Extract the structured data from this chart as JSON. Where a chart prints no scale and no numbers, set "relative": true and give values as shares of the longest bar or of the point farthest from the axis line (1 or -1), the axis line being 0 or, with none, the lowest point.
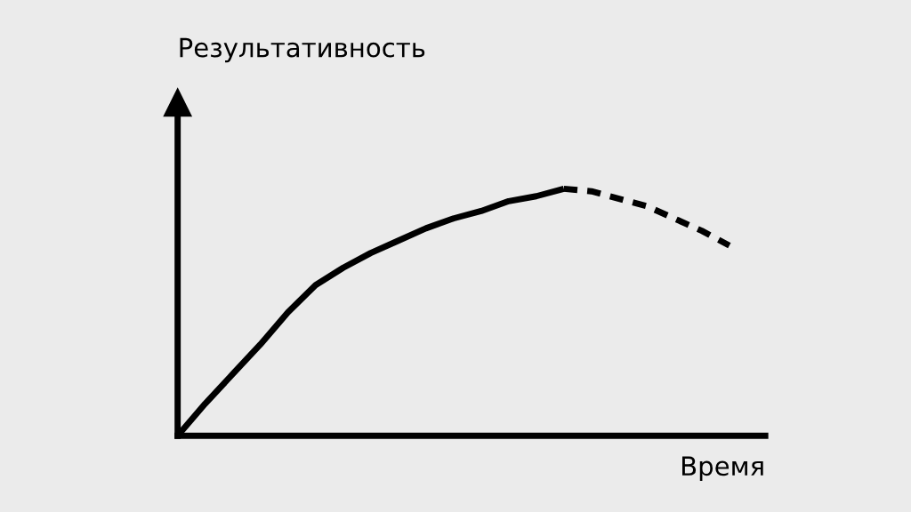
{
  "chart_data": {
    "type": "line",
    "relative": true,
    "xlabel": "Время",
    "ylabel": "Результативность",
    "legend": false,
    "marker": "none",
    "categories": [
      null,
      null,
      null,
      null,
      null,
      null,
      null,
      null,
      null,
      null,
      null,
      null,
      null,
      null,
      null,
      null,
      null,
      null,
      null,
      null,
      null
    ],
    "series": [
      {
        "color": "#000000",
        "line_style": "solid",
        "values": [
          0,
          0.13,
          0.25,
          0.37,
          0.5,
          0.61,
          0.68,
          0.74,
          0.79,
          0.84,
          0.88,
          0.91,
          0.95,
          0.97,
          1.0,
          null,
          null,
          null,
          null,
          null,
          null
        ]
      },
      {
        "color": "#000000",
        "line_style": "dashed",
        "values": [
          null,
          null,
          null,
          null,
          null,
          null,
          null,
          null,
          null,
          null,
          null,
          null,
          null,
          null,
          1.0,
          0.99,
          0.96,
          0.93,
          0.88,
          0.83,
          0.77
        ]
      }
    ]
  }
}
